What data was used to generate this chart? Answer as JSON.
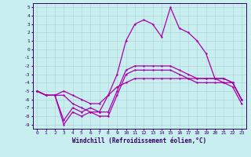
{
  "xlabel": "Windchill (Refroidissement éolien,°C)",
  "bg_color": "#c8eef0",
  "grid_color": "#b0d8d8",
  "line_color": "#aa00aa",
  "xlim": [
    -0.5,
    23.5
  ],
  "ylim": [
    -9.5,
    5.5
  ],
  "xticks": [
    0,
    1,
    2,
    3,
    4,
    5,
    6,
    7,
    8,
    9,
    10,
    11,
    12,
    13,
    14,
    15,
    16,
    17,
    18,
    19,
    20,
    21,
    22,
    23
  ],
  "yticks": [
    5,
    4,
    3,
    2,
    1,
    0,
    -1,
    -2,
    -3,
    -4,
    -5,
    -6,
    -7,
    -8,
    -9
  ],
  "x": [
    0,
    1,
    2,
    3,
    4,
    5,
    6,
    7,
    8,
    9,
    10,
    11,
    12,
    13,
    14,
    15,
    16,
    17,
    18,
    19,
    20,
    21,
    22,
    23
  ],
  "line1": [
    -5.0,
    -5.5,
    -5.5,
    -9.0,
    -7.5,
    -8.0,
    -7.5,
    -8.0,
    -8.0,
    -5.5,
    -3.0,
    -2.5,
    -2.5,
    -2.5,
    -2.5,
    -2.5,
    -3.0,
    -3.5,
    -4.0,
    -4.0,
    -4.0,
    -4.0,
    -4.5,
    -6.5
  ],
  "line2": [
    -5.0,
    -5.5,
    -5.5,
    -8.5,
    -7.0,
    -7.5,
    -7.0,
    -7.5,
    -7.5,
    -5.0,
    -2.5,
    -2.0,
    -2.0,
    -2.0,
    -2.0,
    -2.0,
    -2.5,
    -3.0,
    -3.5,
    -3.5,
    -3.5,
    -3.5,
    -4.0,
    -6.0
  ],
  "line3": [
    -5.0,
    -5.5,
    -5.5,
    -5.0,
    -5.5,
    -6.0,
    -6.5,
    -6.5,
    -5.5,
    -4.5,
    -4.0,
    -3.5,
    -3.5,
    -3.5,
    -3.5,
    -3.5,
    -3.5,
    -3.5,
    -3.5,
    -3.5,
    -3.5,
    -3.5,
    -4.0,
    -6.0
  ],
  "line4": [
    -5.0,
    -5.5,
    -5.5,
    -5.5,
    -6.5,
    -7.0,
    -7.5,
    -7.5,
    -5.5,
    -3.0,
    1.0,
    3.0,
    3.5,
    3.0,
    1.5,
    5.0,
    2.5,
    2.0,
    1.0,
    -0.5,
    -3.5,
    -4.0,
    -4.0,
    -6.0
  ]
}
